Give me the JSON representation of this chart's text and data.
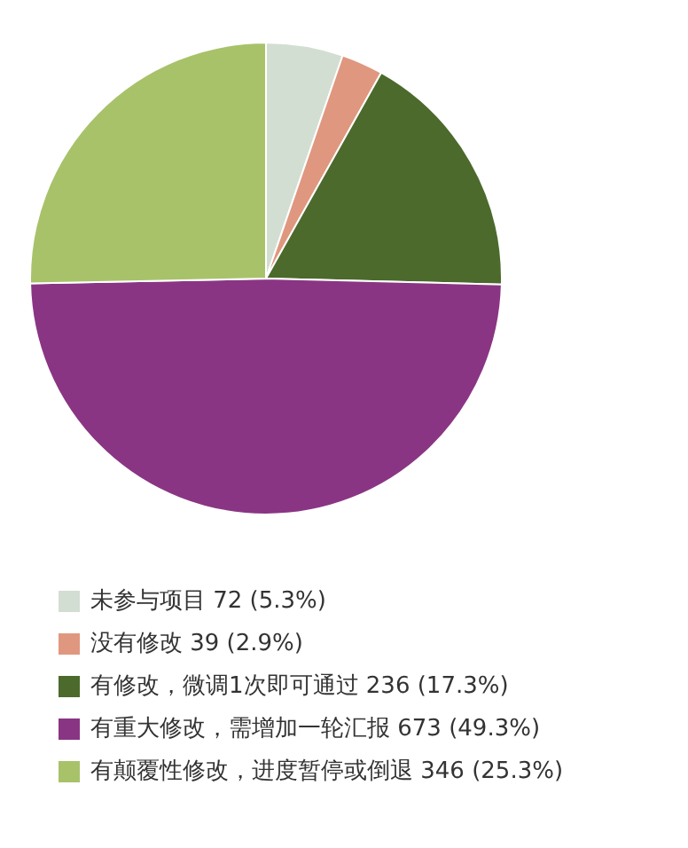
{
  "chart_data": {
    "type": "pie",
    "categories": [
      "未参与项目",
      "没有修改",
      "有修改，微调1次即可通过",
      "有重大修改，需增加一轮汇报",
      "有颠覆性修改，进度暂停或倒退"
    ],
    "values": [
      72,
      39,
      236,
      673,
      346
    ],
    "value_labels": [
      "72 (5.3%)",
      "39 (2.9%)",
      "236 (17.3%)",
      "673 (49.3%)",
      "346 (25.3%)"
    ],
    "colors": [
      "#d3ded3",
      "#e0977f",
      "#4b6a2c",
      "#8a3583",
      "#a8c26a"
    ],
    "legend": "bottom"
  }
}
